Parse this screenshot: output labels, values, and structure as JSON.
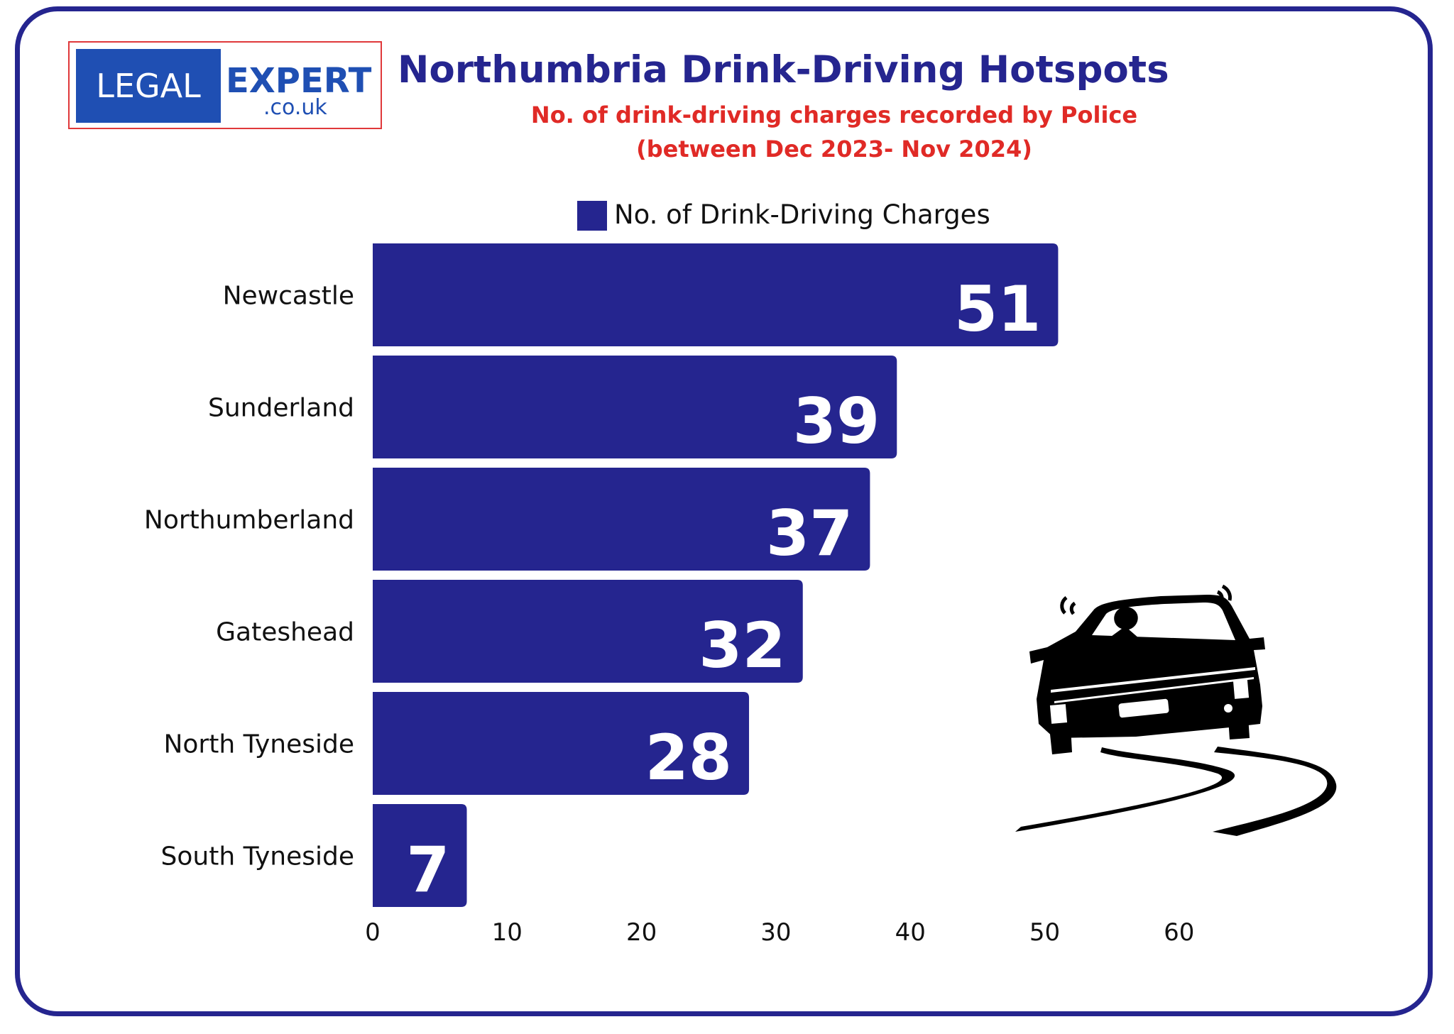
{
  "brand": {
    "left": "LEGAL",
    "right": "EXPERT",
    "domain": ".co.uk"
  },
  "chart_data": {
    "type": "bar",
    "orientation": "horizontal",
    "title": "Northumbria Drink-Driving Hotspots",
    "subtitle": [
      "No. of drink-driving charges recorded by Police",
      "(between Dec 2023- Nov 2024)"
    ],
    "categories": [
      "Newcastle",
      "Sunderland",
      "Northumberland",
      "Gateshead",
      "North Tyneside",
      "South Tyneside"
    ],
    "series": [
      {
        "name": "No. of Drink-Driving Charges",
        "values": [
          51,
          39,
          37,
          32,
          28,
          7
        ]
      }
    ],
    "xlim": [
      0,
      60
    ],
    "xticks": [
      "0",
      "10",
      "20",
      "30",
      "40",
      "50",
      "60"
    ],
    "grid": false,
    "legend": "top-center",
    "data_labels": true,
    "colors": {
      "bar": "#25258f",
      "frame": "#25258f",
      "subtitle": "#e02a26"
    }
  },
  "illustration": {
    "icon": "swerving-car-icon"
  }
}
